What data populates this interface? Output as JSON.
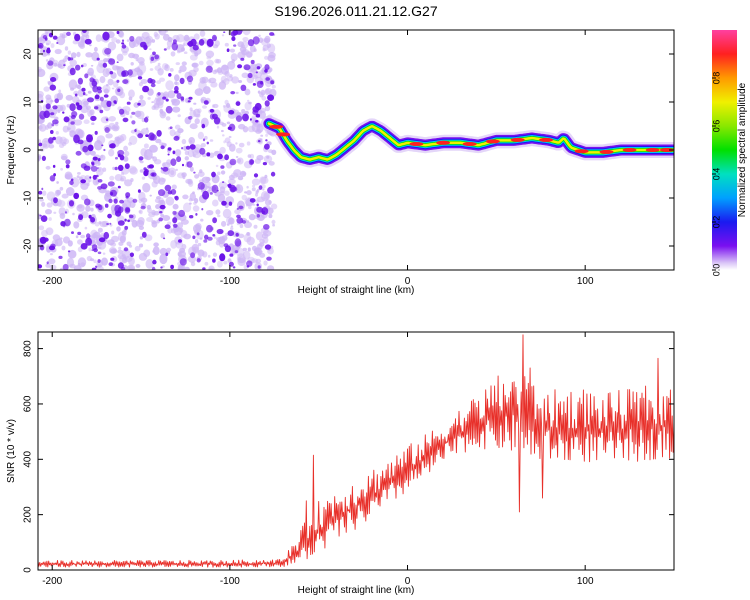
{
  "title": "S196.2026.011.21.12.G27",
  "colors": {
    "axis": "#000000",
    "snr_line": "#e8302a",
    "noise_dark": "#6a12e8",
    "noise_light": "#cdb5f5"
  },
  "chart_data": [
    {
      "type": "heatmap",
      "name": "spectrogram",
      "xlabel": "Height of straight line (km)",
      "ylabel": "Frequency (Hz)",
      "xlim": [
        -208,
        150
      ],
      "ylim": [
        -25,
        25
      ],
      "xticks": [
        -200,
        -100,
        0,
        100
      ],
      "xtick_labels": [
        "-200",
        "-100",
        "0",
        "100"
      ],
      "yticks": [
        -20,
        -10,
        0,
        10,
        20
      ],
      "ytick_labels": [
        "-20",
        "-10",
        "0",
        "10",
        "20"
      ],
      "noise_region_x": [
        -208,
        -75
      ],
      "signal_track": {
        "x": [
          -78,
          -75,
          -72,
          -68,
          -64,
          -60,
          -55,
          -50,
          -45,
          -40,
          -35,
          -30,
          -25,
          -20,
          -15,
          -10,
          -5,
          0,
          10,
          20,
          30,
          40,
          50,
          60,
          70,
          80,
          85,
          88,
          92,
          100,
          110,
          120,
          130,
          140,
          150
        ],
        "y": [
          5.5,
          5,
          4.5,
          2,
          0,
          -1.5,
          -2,
          -1.5,
          -2,
          -1,
          0.5,
          2,
          4,
          5,
          4,
          2.5,
          1,
          1.5,
          1,
          1.5,
          1.5,
          1,
          2,
          2,
          2.5,
          2,
          1.5,
          2.5,
          0.5,
          -0.5,
          -0.5,
          0,
          0,
          0,
          0
        ]
      }
    },
    {
      "type": "line",
      "name": "snr",
      "xlabel": "Height of straight line (km)",
      "ylabel": "SNR (10 * v/v)",
      "xlim": [
        -208,
        150
      ],
      "ylim": [
        0,
        860
      ],
      "xticks": [
        -200,
        -100,
        0,
        100
      ],
      "xtick_labels": [
        "-200",
        "-100",
        "0",
        "100"
      ],
      "yticks": [
        0,
        200,
        400,
        600,
        800
      ],
      "ytick_labels": [
        "0",
        "200",
        "400",
        "600",
        "800"
      ],
      "envelope": {
        "x": [
          -208,
          -100,
          -70,
          -60,
          -50,
          -40,
          -30,
          -20,
          -10,
          0,
          10,
          20,
          30,
          40,
          50,
          60,
          70,
          80,
          90,
          100,
          110,
          120,
          130,
          140,
          150
        ],
        "lo": [
          10,
          10,
          12,
          20,
          60,
          100,
          140,
          180,
          230,
          280,
          330,
          380,
          420,
          440,
          430,
          420,
          400,
          390,
          380,
          390,
          380,
          390,
          390,
          400,
          400
        ],
        "hi": [
          35,
          35,
          40,
          150,
          250,
          300,
          330,
          370,
          410,
          450,
          490,
          540,
          590,
          640,
          700,
          740,
          700,
          650,
          660,
          660,
          640,
          650,
          660,
          680,
          650
        ]
      },
      "spikes": [
        {
          "x": -53,
          "y": 415
        },
        {
          "x": -57,
          "y": 250
        },
        {
          "x": 65,
          "y": 850
        },
        {
          "x": 69,
          "y": 730
        },
        {
          "x": 141,
          "y": 765
        },
        {
          "x": 63,
          "y": 210
        },
        {
          "x": 76,
          "y": 260
        }
      ]
    }
  ],
  "colorbar": {
    "label": "Normalized spectral amplitude",
    "range": [
      0,
      1
    ],
    "ticks": [
      0.0,
      0.2,
      0.4,
      0.6,
      0.8
    ],
    "tick_labels": [
      "0.0",
      "0.2",
      "0.4",
      "0.6",
      "0.8"
    ]
  }
}
